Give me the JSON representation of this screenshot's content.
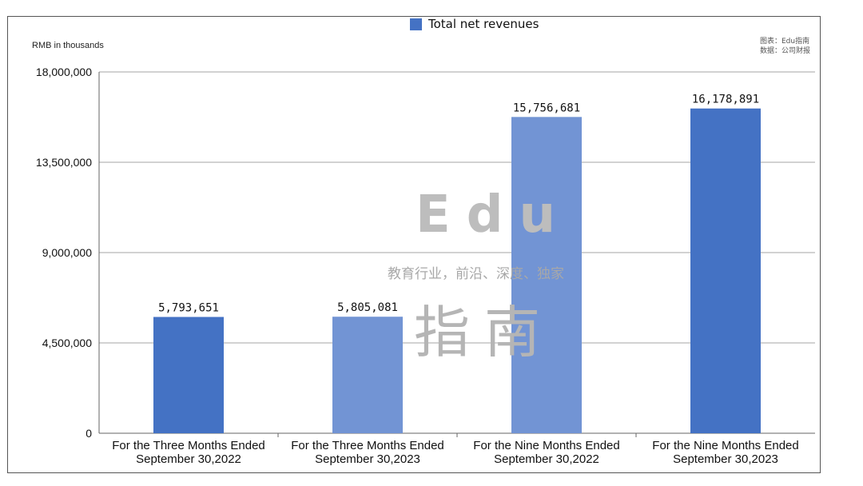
{
  "chart_data": {
    "type": "bar",
    "legend": "Total net revenues",
    "unit_label": "RMB in thousands",
    "categories": [
      [
        "For the Three Months Ended",
        "September 30,2022"
      ],
      [
        "For the Three Months Ended",
        "September 30,2023"
      ],
      [
        "For the Nine Months Ended",
        "September 30,2022"
      ],
      [
        "For the Nine Months Ended",
        "September 30,2023"
      ]
    ],
    "values": [
      5793651,
      5805081,
      15756681,
      16178891
    ],
    "value_labels": [
      "5,793,651",
      "5,805,081",
      "15,756,681",
      "16,178,891"
    ],
    "yticks": [
      0,
      4500000,
      9000000,
      13500000,
      18000000
    ],
    "ytick_labels": [
      "0",
      "4,500,000",
      "9,000,000",
      "13,500,000",
      "18,000,000"
    ],
    "ylim": [
      0,
      18000000
    ],
    "grid": true,
    "colors": [
      "#4472c4",
      "#7294d4",
      "#7294d4",
      "#4472c4"
    ],
    "legend_color": "#4472c4"
  },
  "credit": {
    "line1": "图表：Edu指南",
    "line2": "数据：公司财报"
  },
  "watermark": {
    "brand": "Edu",
    "tagline": "教育行业，前沿、深度、独家",
    "name": "指南"
  }
}
